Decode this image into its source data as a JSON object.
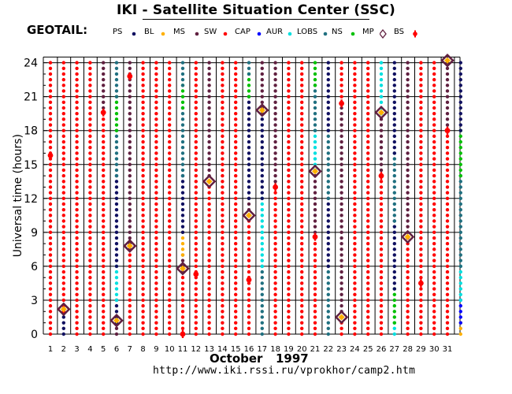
{
  "header": {
    "title": "IKI - Satellite Situation Center (SSC)",
    "satellite": "GEOTAIL:"
  },
  "legend": [
    {
      "label": "PS",
      "color": "#101060",
      "marker": "dot"
    },
    {
      "label": "BL",
      "color": "#ffb000",
      "marker": "dot"
    },
    {
      "label": "MS",
      "color": "#602040",
      "marker": "dot"
    },
    {
      "label": "SW",
      "color": "#ff0000",
      "marker": "dot"
    },
    {
      "label": "CAP",
      "color": "#0000ff",
      "marker": "dot"
    },
    {
      "label": "AUR",
      "color": "#00e0e0",
      "marker": "dot"
    },
    {
      "label": "LOBS",
      "color": "#207080",
      "marker": "dot"
    },
    {
      "label": "NS",
      "color": "#00c000",
      "marker": "dot"
    },
    {
      "label": "MP",
      "color": "#602040",
      "marker": "diamond"
    },
    {
      "label": "BS",
      "color": "#ff0000",
      "marker": "cross"
    }
  ],
  "footer": {
    "month": "October",
    "year": "1997",
    "url": "http://www.iki.rssi.ru/vprokhor/camp2.htm"
  },
  "chart_data": {
    "type": "scatter",
    "ylabel": "Universal time (hours)",
    "xlabel": "October 1997",
    "x_ticks": [
      1,
      2,
      3,
      4,
      5,
      6,
      7,
      8,
      9,
      10,
      11,
      12,
      13,
      14,
      15,
      16,
      17,
      18,
      19,
      20,
      21,
      22,
      23,
      24,
      25,
      26,
      27,
      28,
      29,
      30,
      31
    ],
    "y_ticks": [
      0,
      3,
      6,
      9,
      12,
      15,
      18,
      21,
      24
    ],
    "ylim": [
      0,
      24.5
    ],
    "grid": true,
    "tracks": [
      {
        "day": 1,
        "segments": [
          [
            0,
            24,
            "SW"
          ]
        ]
      },
      {
        "day": 2,
        "segments": [
          [
            0,
            2,
            "PS"
          ],
          [
            2,
            24,
            "SW"
          ]
        ]
      },
      {
        "day": 3,
        "segments": [
          [
            0,
            24,
            "SW"
          ]
        ]
      },
      {
        "day": 4,
        "segments": [
          [
            0,
            24,
            "SW"
          ]
        ]
      },
      {
        "day": 5,
        "segments": [
          [
            0,
            19.5,
            "SW"
          ],
          [
            19.5,
            24,
            "MS"
          ]
        ]
      },
      {
        "day": 6,
        "segments": [
          [
            0,
            1,
            "MS"
          ],
          [
            1,
            3,
            "PS"
          ],
          [
            3,
            6,
            "AUR"
          ],
          [
            6,
            14,
            "PS"
          ],
          [
            14,
            18,
            "LOBS"
          ],
          [
            18,
            21,
            "NS"
          ],
          [
            21,
            24,
            "LOBS"
          ]
        ]
      },
      {
        "day": 7,
        "segments": [
          [
            0,
            7.5,
            "SW"
          ],
          [
            7.5,
            24,
            "MS"
          ]
        ]
      },
      {
        "day": 8,
        "segments": [
          [
            0,
            24,
            "SW"
          ]
        ]
      },
      {
        "day": 9,
        "segments": [
          [
            0,
            24,
            "SW"
          ]
        ]
      },
      {
        "day": 10,
        "segments": [
          [
            0,
            24,
            "SW"
          ]
        ]
      },
      {
        "day": 11,
        "segments": [
          [
            0,
            5.5,
            "SW"
          ],
          [
            5.5,
            7,
            "MS"
          ],
          [
            7,
            9,
            "BL"
          ],
          [
            9,
            14,
            "PS"
          ],
          [
            14,
            20,
            "LOBS"
          ],
          [
            20,
            22,
            "NS"
          ],
          [
            22,
            24,
            "LOBS"
          ]
        ]
      },
      {
        "day": 12,
        "segments": [
          [
            0,
            24,
            "SW"
          ]
        ]
      },
      {
        "day": 13,
        "segments": [
          [
            0,
            13.5,
            "SW"
          ],
          [
            13.5,
            24,
            "MS"
          ]
        ]
      },
      {
        "day": 14,
        "segments": [
          [
            0,
            24,
            "SW"
          ]
        ]
      },
      {
        "day": 15,
        "segments": [
          [
            0,
            24,
            "SW"
          ]
        ]
      },
      {
        "day": 16,
        "segments": [
          [
            0,
            10.5,
            "SW"
          ],
          [
            10.5,
            12,
            "MS"
          ],
          [
            12,
            21,
            "PS"
          ],
          [
            21,
            23,
            "NS"
          ],
          [
            23,
            24,
            "LOBS"
          ]
        ]
      },
      {
        "day": 17,
        "segments": [
          [
            0,
            6,
            "LOBS"
          ],
          [
            6,
            12,
            "AUR"
          ],
          [
            12,
            19.5,
            "PS"
          ],
          [
            19.5,
            24,
            "MS"
          ]
        ]
      },
      {
        "day": 18,
        "segments": [
          [
            0,
            13,
            "SW"
          ],
          [
            13,
            24,
            "MS"
          ]
        ]
      },
      {
        "day": 19,
        "segments": [
          [
            0,
            24,
            "SW"
          ]
        ]
      },
      {
        "day": 20,
        "segments": [
          [
            0,
            24,
            "SW"
          ]
        ]
      },
      {
        "day": 21,
        "segments": [
          [
            0,
            8.5,
            "SW"
          ],
          [
            8.5,
            14.5,
            "MS"
          ],
          [
            14.5,
            18,
            "AUR"
          ],
          [
            18,
            22,
            "LOBS"
          ],
          [
            22,
            24,
            "NS"
          ]
        ]
      },
      {
        "day": 22,
        "segments": [
          [
            0,
            6,
            "LOBS"
          ],
          [
            6,
            12,
            "PS"
          ],
          [
            12,
            18,
            "LOBS"
          ],
          [
            18,
            24,
            "PS"
          ]
        ]
      },
      {
        "day": 23,
        "segments": [
          [
            0,
            1.5,
            "SW"
          ],
          [
            1.5,
            20.5,
            "MS"
          ],
          [
            20.5,
            24,
            "SW"
          ]
        ]
      },
      {
        "day": 24,
        "segments": [
          [
            0,
            24,
            "SW"
          ]
        ]
      },
      {
        "day": 25,
        "segments": [
          [
            0,
            24,
            "SW"
          ]
        ]
      },
      {
        "day": 26,
        "segments": [
          [
            0,
            14,
            "SW"
          ],
          [
            14,
            19.5,
            "MS"
          ],
          [
            19.5,
            24,
            "AUR"
          ]
        ]
      },
      {
        "day": 27,
        "segments": [
          [
            0,
            1,
            "AUR"
          ],
          [
            1,
            4,
            "NS"
          ],
          [
            4,
            10,
            "PS"
          ],
          [
            10,
            16,
            "LOBS"
          ],
          [
            16,
            24,
            "PS"
          ]
        ]
      },
      {
        "day": 28,
        "segments": [
          [
            0,
            8.5,
            "SW"
          ],
          [
            8.5,
            24,
            "MS"
          ]
        ]
      },
      {
        "day": 29,
        "segments": [
          [
            0,
            24,
            "SW"
          ]
        ]
      },
      {
        "day": 30,
        "segments": [
          [
            0,
            24,
            "SW"
          ]
        ]
      },
      {
        "day": 31,
        "segments": [
          [
            0,
            18,
            "SW"
          ],
          [
            18,
            24,
            "MS"
          ]
        ]
      },
      {
        "day": 32,
        "segments": [
          [
            0,
            1,
            "BL"
          ],
          [
            1,
            3,
            "CAP"
          ],
          [
            3,
            6,
            "AUR"
          ],
          [
            6,
            14,
            "LOBS"
          ],
          [
            14,
            18,
            "NS"
          ],
          [
            18,
            24,
            "PS"
          ]
        ]
      }
    ],
    "mp_crossings": [
      {
        "day": 2,
        "hour": 2.2
      },
      {
        "day": 6,
        "hour": 1.2
      },
      {
        "day": 7,
        "hour": 7.8
      },
      {
        "day": 11,
        "hour": 5.8
      },
      {
        "day": 13,
        "hour": 13.5
      },
      {
        "day": 16,
        "hour": 10.5
      },
      {
        "day": 17,
        "hour": 19.8
      },
      {
        "day": 21,
        "hour": 14.4
      },
      {
        "day": 23,
        "hour": 1.5
      },
      {
        "day": 26,
        "hour": 19.6
      },
      {
        "day": 28,
        "hour": 8.6
      },
      {
        "day": 31,
        "hour": 24.2
      }
    ],
    "bs_crossings": [
      {
        "day": 1,
        "hour": 15.8
      },
      {
        "day": 5,
        "hour": 19.6
      },
      {
        "day": 7,
        "hour": 22.8
      },
      {
        "day": 11,
        "hour": 0
      },
      {
        "day": 12,
        "hour": 5.3
      },
      {
        "day": 16,
        "hour": 4.8
      },
      {
        "day": 18,
        "hour": 13
      },
      {
        "day": 21,
        "hour": 8.6
      },
      {
        "day": 23,
        "hour": 20.4
      },
      {
        "day": 26,
        "hour": 14
      },
      {
        "day": 29,
        "hour": 4.5
      },
      {
        "day": 31,
        "hour": 18
      }
    ]
  }
}
